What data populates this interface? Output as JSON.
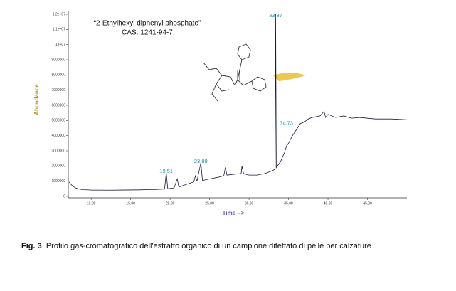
{
  "chart_data": {
    "type": "line",
    "annotations_title": [
      "“2-Ethylhexyl diphenyl phosphate”",
      "CAS: 1241-94-7"
    ],
    "xlabel": "Time -->",
    "ylabel": "Abundance",
    "x": [
      7.2,
      7.6,
      8,
      8.5,
      9,
      10,
      12,
      14,
      16,
      18,
      19.3,
      19.51,
      19.7,
      20.5,
      20.9,
      21.1,
      22,
      23,
      23.2,
      23.4,
      23.89,
      24.1,
      25,
      26,
      26.8,
      27,
      27.2,
      28,
      29,
      29.1,
      29.3,
      30,
      31,
      32,
      33,
      33.3,
      33.37,
      33.45,
      34,
      34.5,
      34.73,
      35,
      35.5,
      36,
      36.5,
      37,
      37.5,
      38,
      39,
      39.5,
      39.7,
      40,
      41,
      42,
      43,
      44,
      46,
      48,
      50
    ],
    "series": [
      {
        "color": "#1c1c3a",
        "values": [
          950000,
          700000,
          560000,
          480000,
          440000,
          420000,
          410000,
          420000,
          430000,
          450000,
          480000,
          1550000,
          500000,
          560000,
          1150000,
          620000,
          780000,
          950000,
          1350000,
          1000000,
          2200000,
          1050000,
          1150000,
          1250000,
          1350000,
          1900000,
          1400000,
          1450000,
          1500000,
          2000000,
          1500000,
          1400000,
          1400000,
          1500000,
          1700000,
          1800000,
          12000000,
          1900000,
          2300000,
          2900000,
          3300000,
          3500000,
          4000000,
          4400000,
          4800000,
          4900000,
          5100000,
          5200000,
          5300000,
          5600000,
          5200000,
          5400000,
          5200000,
          5300000,
          5150000,
          5200000,
          5100000,
          5100000,
          5050000
        ]
      }
    ],
    "annotations": [
      {
        "text": "19.51",
        "x": 19.51,
        "y": 1650000
      },
      {
        "text": "23.89",
        "x": 23.89,
        "y": 2300000
      },
      {
        "text": "33.37",
        "x": 33.37,
        "y": 11900000
      },
      {
        "text": "34.73",
        "x": 34.73,
        "y": 4800000
      }
    ],
    "xlim": [
      7.1,
      50
    ],
    "xticks": [
      {
        "value": 10,
        "label": "10.00"
      },
      {
        "value": 15,
        "label": "15.00"
      },
      {
        "value": 20,
        "label": "20.00"
      },
      {
        "value": 25,
        "label": "25.00"
      },
      {
        "value": 30,
        "label": "30.00"
      },
      {
        "value": 35,
        "label": "35.00"
      },
      {
        "value": 40,
        "label": "40.00"
      },
      {
        "value": 45,
        "label": "45.00"
      }
    ],
    "ylim": [
      0,
      12000000
    ],
    "yticks": [
      0,
      1000000,
      2000000,
      3000000,
      4000000,
      5000000,
      6000000,
      7000000,
      8000000,
      9000000,
      {
        "value": 10000000,
        "label": "1e+07"
      },
      {
        "value": 11000000,
        "label": "1.1e+07"
      },
      {
        "value": 12000000,
        "label": "1.2e+07"
      }
    ],
    "caption": {
      "label": "Fig. 3",
      "text": ". Profilo gas-cromatografico dell'estratto organico di un campione difettato di pelle per calzature"
    }
  }
}
